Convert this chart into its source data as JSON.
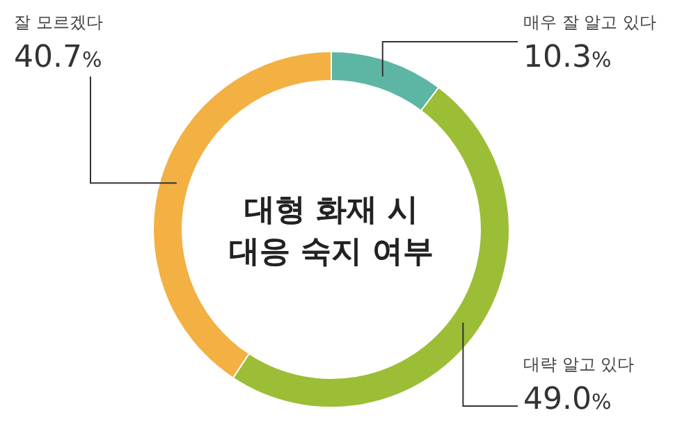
{
  "chart_data": {
    "type": "donut",
    "title": "대형 화재 시\n대응 숙지 여부",
    "categories": [
      "매우 잘 알고 있다",
      "대략 알고 있다",
      "잘 모르겠다"
    ],
    "values": [
      10.3,
      49.0,
      40.7
    ],
    "value_labels": [
      "10.3%",
      "49.0%",
      "40.7%"
    ],
    "colors": [
      "#5db6a3",
      "#9cbd36",
      "#f3b043"
    ]
  }
}
